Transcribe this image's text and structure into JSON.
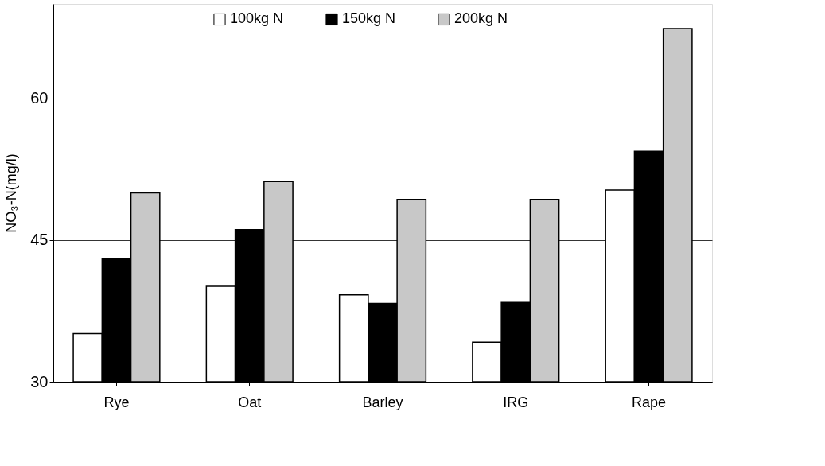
{
  "chart_data": {
    "type": "bar",
    "ylabel": "NO₃-N(mg/l)",
    "categories": [
      "Rye",
      "Oat",
      "Barley",
      "IRG",
      "Rape"
    ],
    "series": [
      {
        "name": "100kg N",
        "color": "#ffffff",
        "values": [
          35.1,
          40.1,
          39.2,
          34.2,
          50.3
        ]
      },
      {
        "name": "150kg N",
        "color": "#000000",
        "values": [
          43.0,
          46.1,
          38.3,
          38.4,
          54.4
        ]
      },
      {
        "name": "200kg N",
        "color": "#c8c8c8",
        "values": [
          50.0,
          51.2,
          49.3,
          49.3,
          67.4
        ]
      }
    ],
    "ylim": [
      30,
      70
    ],
    "yticks": [
      30,
      45,
      60
    ],
    "grid": "y",
    "legend": "top"
  }
}
